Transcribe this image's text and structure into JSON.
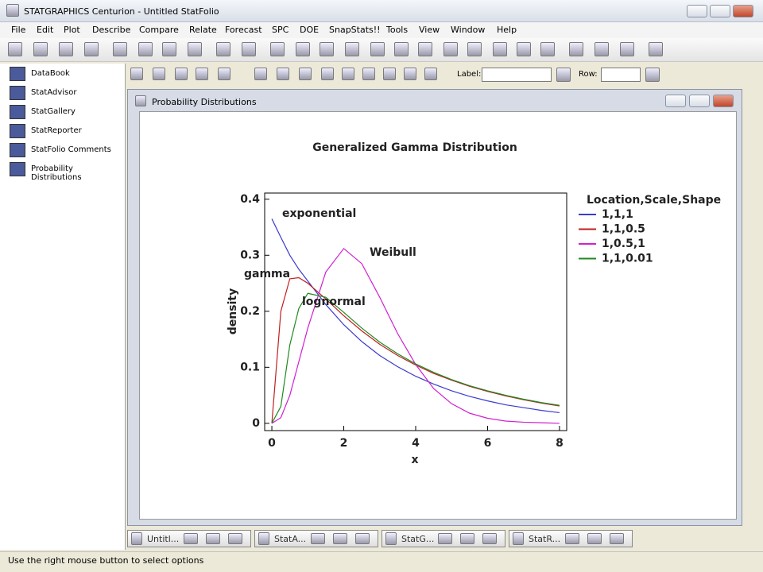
{
  "window": {
    "title": "STATGRAPHICS Centurion - Untitled StatFolio"
  },
  "menu": [
    "File",
    "Edit",
    "Plot",
    "Describe",
    "Compare",
    "Relate",
    "Forecast",
    "SPC",
    "DOE",
    "SnapStats!!",
    "Tools",
    "View",
    "Window",
    "Help"
  ],
  "sidebar": [
    "DataBook",
    "StatAdvisor",
    "StatGallery",
    "StatReporter",
    "StatFolio Comments",
    "Probability Distributions"
  ],
  "toolbar": {
    "label": "Label:",
    "row": "Row:"
  },
  "pane": {
    "title": "Probability Distributions"
  },
  "tabs": [
    "Untitl...",
    "StatA...",
    "StatG...",
    "StatR..."
  ],
  "status": "Use the right mouse button to select options",
  "chart_data": {
    "type": "line",
    "title": "Generalized Gamma Distribution",
    "x_label": "x",
    "y_label": "density",
    "legend_title": "Location,Scale,Shape",
    "legend": "right",
    "annotations": [
      "exponential",
      "Weibull",
      "gamma",
      "lognormal"
    ],
    "x": [
      0,
      0.25,
      0.5,
      0.75,
      1,
      1.5,
      2,
      2.5,
      3,
      3.5,
      4,
      4.5,
      5,
      5.5,
      6,
      6.5,
      7,
      7.5,
      8
    ],
    "series": [
      {
        "name": "1,1,1",
        "color": "#3b3bd0",
        "values": [
          0.365,
          0.332,
          0.3,
          0.275,
          0.254,
          0.212,
          0.176,
          0.146,
          0.121,
          0.101,
          0.084,
          0.07,
          0.058,
          0.048,
          0.04,
          0.033,
          0.028,
          0.023,
          0.019
        ]
      },
      {
        "name": "1,1,0.5",
        "color": "#c02020",
        "values": [
          0,
          0.2,
          0.258,
          0.26,
          0.25,
          0.222,
          0.192,
          0.165,
          0.141,
          0.121,
          0.104,
          0.089,
          0.077,
          0.066,
          0.057,
          0.049,
          0.042,
          0.036,
          0.031
        ]
      },
      {
        "name": "1,0.5,1",
        "color": "#d020d0",
        "values": [
          0,
          0.01,
          0.05,
          0.11,
          0.17,
          0.27,
          0.312,
          0.285,
          0.225,
          0.16,
          0.105,
          0.062,
          0.035,
          0.018,
          0.009,
          0.004,
          0.002,
          0.001,
          0
        ]
      },
      {
        "name": "1,1,0.01",
        "color": "#208a20",
        "values": [
          0,
          0.03,
          0.14,
          0.205,
          0.232,
          0.225,
          0.198,
          0.17,
          0.145,
          0.124,
          0.106,
          0.091,
          0.078,
          0.067,
          0.058,
          0.05,
          0.043,
          0.037,
          0.032
        ]
      }
    ],
    "xlim": [
      -0.2,
      8.2
    ],
    "ylim": [
      -0.013,
      0.411
    ],
    "xticks": [
      0,
      2,
      4,
      6,
      8
    ],
    "yticks": [
      0,
      0.1,
      0.2,
      0.3,
      0.4
    ],
    "grid": false
  }
}
